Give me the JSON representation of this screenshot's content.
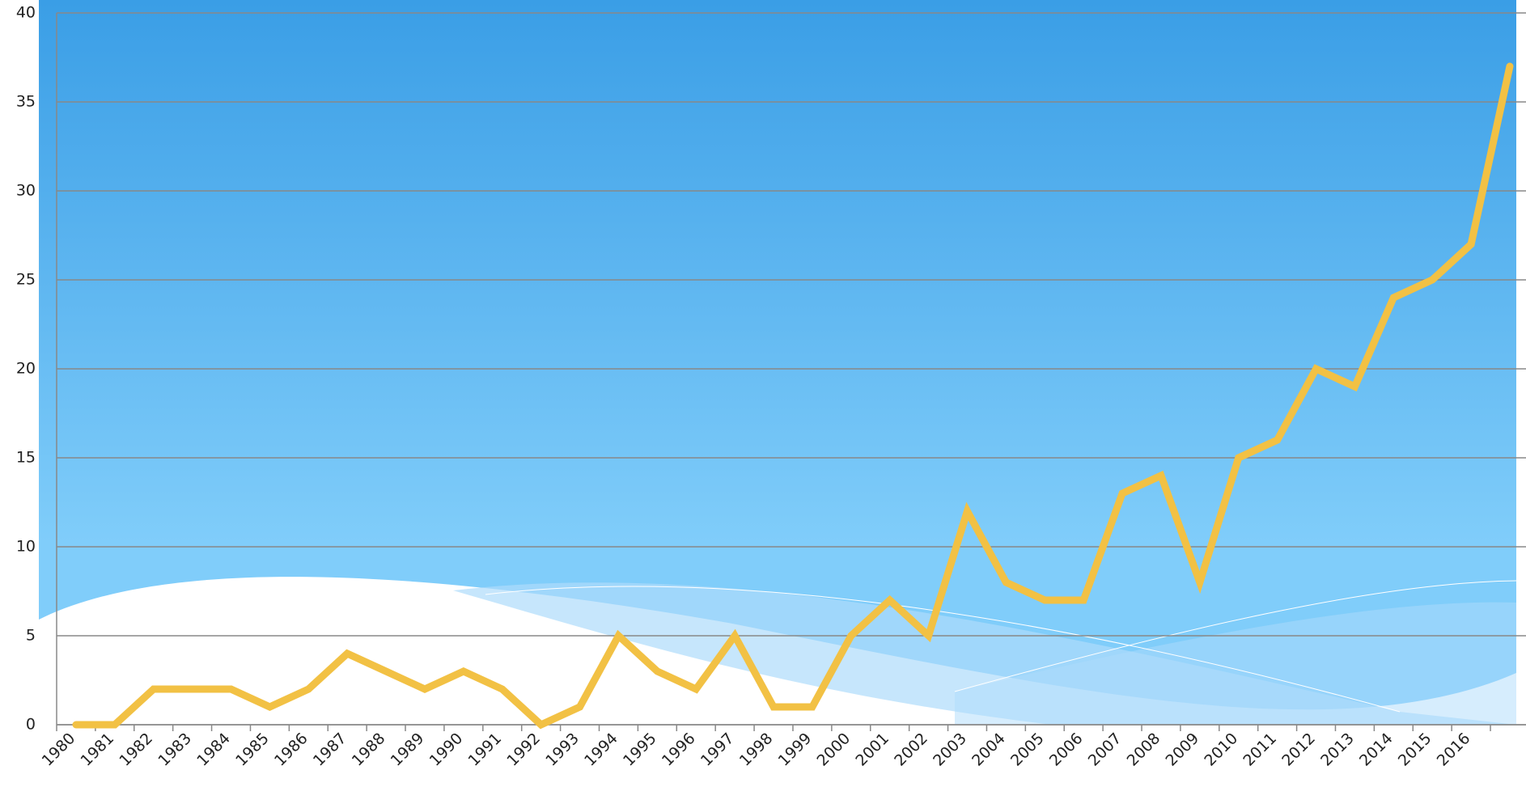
{
  "chart_data": {
    "type": "line",
    "categories": [
      "1980",
      "1981",
      "1982",
      "1983",
      "1984",
      "1985",
      "1986",
      "1987",
      "1988",
      "1989",
      "1990",
      "1991",
      "1992",
      "1993",
      "1994",
      "1995",
      "1996",
      "1997",
      "1998",
      "1999",
      "2000",
      "2001",
      "2002",
      "2003",
      "2004",
      "2005",
      "2006",
      "2007",
      "2008",
      "2009",
      "2010",
      "2011",
      "2012",
      "2013",
      "2014",
      "2015",
      "2016",
      null
    ],
    "series": [
      {
        "color": "#f2c144",
        "values": [
          0,
          0,
          2,
          2,
          2,
          1,
          2,
          4,
          3,
          2,
          3,
          2,
          0,
          1,
          5,
          3,
          2,
          5,
          1,
          1,
          5,
          7,
          5,
          12,
          8,
          7,
          7,
          13,
          14,
          8,
          15,
          16,
          20,
          19,
          24,
          25,
          27,
          37
        ]
      }
    ],
    "ylim": [
      0,
      40
    ],
    "yticks": [
      0,
      5,
      10,
      15,
      20,
      25,
      30,
      35,
      40
    ],
    "grid": true
  }
}
